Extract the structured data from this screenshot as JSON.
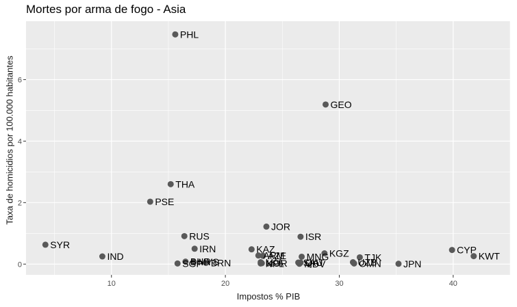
{
  "chart_data": {
    "type": "scatter",
    "title": "Mortes por arma de fogo - Asia",
    "xlabel": "Impostos % PIB",
    "ylabel": "Taxa de homicidios por 100.000 habitantes",
    "xlim": [
      2.5,
      45
    ],
    "ylim": [
      -0.35,
      7.9
    ],
    "x_ticks": [
      10,
      20,
      30,
      40
    ],
    "y_ticks": [
      0,
      2,
      4,
      6
    ],
    "grid": true,
    "legend": "none",
    "colors": {
      "panel": "#ebebeb",
      "grid": "#ffffff",
      "point": "#595959"
    },
    "points": [
      {
        "label": "PHL",
        "x": 15.6,
        "y": 7.47
      },
      {
        "label": "GEO",
        "x": 28.8,
        "y": 5.19
      },
      {
        "label": "THA",
        "x": 15.2,
        "y": 2.6
      },
      {
        "label": "PSE",
        "x": 13.4,
        "y": 2.03
      },
      {
        "label": "JOR",
        "x": 23.6,
        "y": 1.22
      },
      {
        "label": "RUS",
        "x": 16.4,
        "y": 0.91
      },
      {
        "label": "ISR",
        "x": 26.6,
        "y": 0.89
      },
      {
        "label": "SYR",
        "x": 4.2,
        "y": 0.63
      },
      {
        "label": "IRN",
        "x": 17.3,
        "y": 0.5
      },
      {
        "label": "KAZ",
        "x": 22.3,
        "y": 0.48
      },
      {
        "label": "CYP",
        "x": 39.9,
        "y": 0.46
      },
      {
        "label": "KGZ",
        "x": 28.7,
        "y": 0.35
      },
      {
        "label": "ARM",
        "x": 22.9,
        "y": 0.28
      },
      {
        "label": "AZE",
        "x": 23.3,
        "y": 0.27
      },
      {
        "label": "KWT",
        "x": 41.8,
        "y": 0.26
      },
      {
        "label": "IND",
        "x": 9.2,
        "y": 0.25
      },
      {
        "label": "MNG",
        "x": 26.7,
        "y": 0.24
      },
      {
        "label": "TJK",
        "x": 31.8,
        "y": 0.22
      },
      {
        "label": "BHR",
        "x": 16.5,
        "y": 0.08
      },
      {
        "label": "MYS",
        "x": 17.2,
        "y": 0.07
      },
      {
        "label": "LKA",
        "x": 23.1,
        "y": 0.06
      },
      {
        "label": "UZB",
        "x": 31.2,
        "y": 0.06
      },
      {
        "label": "QAT",
        "x": 26.6,
        "y": 0.05
      },
      {
        "label": "SAU",
        "x": 26.4,
        "y": 0.05
      },
      {
        "label": "BRN",
        "x": 18.3,
        "y": 0.04
      },
      {
        "label": "KOR",
        "x": 23.2,
        "y": 0.03
      },
      {
        "label": "OMN",
        "x": 31.3,
        "y": 0.02
      },
      {
        "label": "SGP",
        "x": 15.8,
        "y": 0.02
      },
      {
        "label": "NPL",
        "x": 23.1,
        "y": 0.02
      },
      {
        "label": "MDV",
        "x": 26.5,
        "y": 0.01
      },
      {
        "label": "JPN",
        "x": 35.2,
        "y": 0.01
      }
    ]
  }
}
